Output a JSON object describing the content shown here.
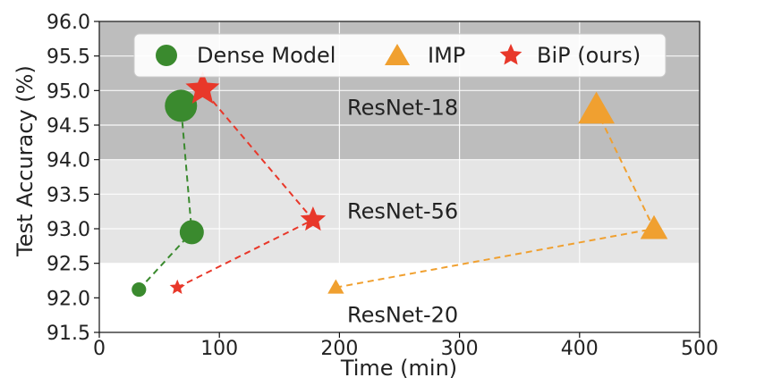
{
  "chart_data": {
    "type": "scatter",
    "xlabel": "Time (min)",
    "ylabel": "Test Accuracy (%)",
    "xlim": [
      0,
      500
    ],
    "ylim": [
      91.5,
      96.0
    ],
    "xticks": [
      "0",
      "100",
      "200",
      "300",
      "400",
      "500"
    ],
    "yticks": [
      "91.5",
      "92.0",
      "92.5",
      "93.0",
      "93.5",
      "94.0",
      "94.5",
      "95.0",
      "95.5",
      "96.0"
    ],
    "grid": true,
    "legend_position": "top",
    "bands": [
      {
        "label": "ResNet-18",
        "y_from": 94.0,
        "y_to": 96.0,
        "color": "#bdbdbd"
      },
      {
        "label": "ResNet-56",
        "y_from": 92.5,
        "y_to": 94.0,
        "color": "#e5e5e5"
      },
      {
        "label": "ResNet-20",
        "y_from": 91.5,
        "y_to": 92.5,
        "color": "#ffffff"
      }
    ],
    "series": [
      {
        "name": "Dense Model",
        "marker": "circle",
        "color": "#3a8a2e",
        "points": [
          {
            "x": 33,
            "y": 92.12,
            "model": "ResNet-20"
          },
          {
            "x": 77,
            "y": 92.95,
            "model": "ResNet-56"
          },
          {
            "x": 68,
            "y": 94.78,
            "model": "ResNet-18"
          }
        ]
      },
      {
        "name": "IMP",
        "marker": "triangle",
        "color": "#f0a030",
        "points": [
          {
            "x": 197,
            "y": 92.15,
            "model": "ResNet-20"
          },
          {
            "x": 462,
            "y": 93.0,
            "model": "ResNet-56"
          },
          {
            "x": 414,
            "y": 94.72,
            "model": "ResNet-18"
          }
        ]
      },
      {
        "name": "BiP (ours)",
        "marker": "star",
        "color": "#e8382a",
        "points": [
          {
            "x": 65,
            "y": 92.15,
            "model": "ResNet-20"
          },
          {
            "x": 178,
            "y": 93.13,
            "model": "ResNet-56"
          },
          {
            "x": 86,
            "y": 95.02,
            "model": "ResNet-18"
          }
        ]
      }
    ]
  }
}
